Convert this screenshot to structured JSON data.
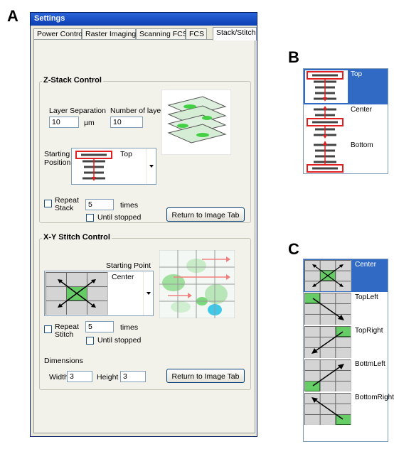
{
  "labels": {
    "a": "A",
    "b": "B",
    "c": "C"
  },
  "window": {
    "title": "Settings",
    "tabs": [
      {
        "label": "Power Control"
      },
      {
        "label": "Raster Imaging"
      },
      {
        "label": "Scanning FCS"
      },
      {
        "label": "FCS"
      },
      {
        "label": "Stack/Stitch"
      }
    ],
    "active_tab": "Stack/Stitch"
  },
  "zstack": {
    "title": "Z-Stack Control",
    "layer_separation_label": "Layer Separation",
    "layer_separation_value": "10",
    "layer_unit": "µm",
    "num_layers_label": "Number of layers",
    "num_layers_value": "10",
    "start_label_1": "Starting",
    "start_label_2": "Position",
    "start_value": "Top",
    "repeat_label_1": "Repeat",
    "repeat_label_2": "Stack",
    "repeat_value": "5",
    "times_label": "times",
    "until_label": "Until stopped",
    "return_button": "Return to Image Tab"
  },
  "xystitch": {
    "title": "X-Y Stitch Control",
    "start_label": "Starting Point",
    "start_value": "Center",
    "repeat_label_1": "Repeat",
    "repeat_label_2": "Stitch",
    "repeat_value": "5",
    "times_label": "times",
    "until_label": "Until stopped",
    "dimensions_label": "Dimensions",
    "width_label": "Width",
    "width_value": "3",
    "height_label": "Height",
    "height_value": "3",
    "return_button": "Return to Image Tab"
  },
  "list_b": {
    "items": [
      "Top",
      "Center",
      "Bottom"
    ],
    "selected": "Top"
  },
  "list_c": {
    "items": [
      "Center",
      "TopLeft",
      "TopRight",
      "BottmLeft",
      "BottomRight"
    ],
    "selected": "Center"
  }
}
